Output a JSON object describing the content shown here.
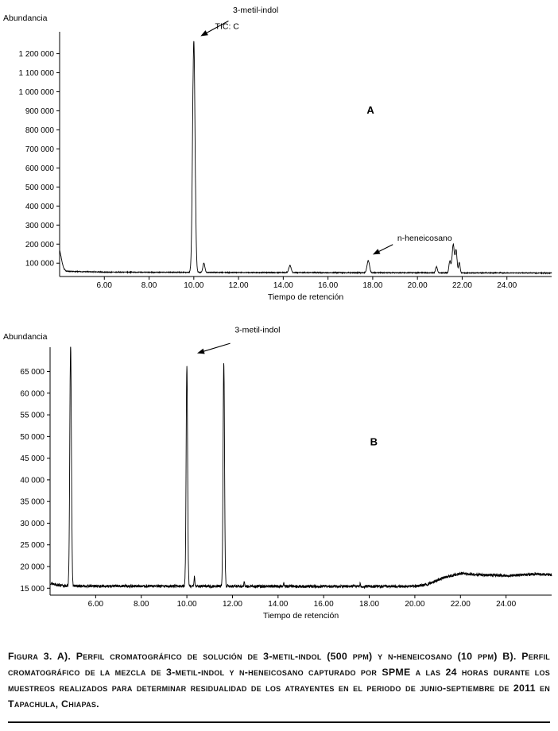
{
  "page": {
    "caption": "Figura 3. A). Perfil cromatográfico de solución de 3-metil-indol (500 ppm) y n-heneicosano (10 ppm) B). Perfil cromatográfico de la mezcla de 3-metil-indol y n-heneicosano capturado por SPME a las 24 horas durante los muestreos realizados para determinar residualidad de los atrayentes en el periodo de junio-septiembre de 2011 en Tapachula, Chiapas."
  },
  "chart_data": [
    {
      "id": "A",
      "type": "line",
      "panel_label": "A",
      "ylabel": "Abundancia",
      "xlabel": "Tiempo de retención",
      "xlim": [
        4.0,
        26.0
      ],
      "ylim": [
        30000,
        1315000
      ],
      "grid": false,
      "xticks": [
        6,
        8,
        10,
        12,
        14,
        16,
        18,
        20,
        22,
        24
      ],
      "xtick_labels": [
        "6.00",
        "8.00",
        "10.00",
        "12.00",
        "14.00",
        "16.00",
        "18.00",
        "20.00",
        "22.00",
        "24.00"
      ],
      "yticks": [
        100000,
        200000,
        300000,
        400000,
        500000,
        600000,
        700000,
        800000,
        900000,
        1000000,
        1100000,
        1200000
      ],
      "ytick_labels": [
        "100 000",
        "200 000",
        "300 000",
        "400 000",
        "500 000",
        "600 000",
        "700 000",
        "800 000",
        "900 000",
        "1 000 000",
        "1 100 000",
        "1 200 000"
      ],
      "baseline_drift": [
        [
          4.0,
          58000
        ],
        [
          6.0,
          53000
        ],
        [
          12.0,
          51000
        ],
        [
          20.0,
          49500
        ],
        [
          26.0,
          48500
        ]
      ],
      "noise_amplitude": 2000,
      "peaks": [
        {
          "x": 3.95,
          "amp": 120000,
          "w": 0.12,
          "label": "solvent front"
        },
        {
          "x": 10.0,
          "amp": 1215000,
          "w": 0.055,
          "label": "3-metil-indol"
        },
        {
          "x": 10.45,
          "amp": 48000,
          "w": 0.045
        },
        {
          "x": 14.3,
          "amp": 38000,
          "w": 0.05
        },
        {
          "x": 17.8,
          "amp": 64000,
          "w": 0.055,
          "label": "n-heneicosano"
        },
        {
          "x": 20.85,
          "amp": 32000,
          "w": 0.04
        },
        {
          "x": 21.45,
          "amp": 62000,
          "w": 0.04
        },
        {
          "x": 21.6,
          "amp": 150000,
          "w": 0.05
        },
        {
          "x": 21.73,
          "amp": 118000,
          "w": 0.04
        },
        {
          "x": 21.87,
          "amp": 55000,
          "w": 0.035
        }
      ],
      "annotations": [
        {
          "name": "3-metil-indol",
          "text": "3-metil-indol",
          "text_at": [
            11.75,
            1415000
          ],
          "anchor": "start",
          "arrow_from": [
            11.55,
            1372000
          ],
          "arrow_to": [
            10.3,
            1292000
          ]
        },
        {
          "name": "tic-c",
          "text": "TIC: C",
          "text_at": [
            10.95,
            1330000
          ],
          "anchor": "start"
        },
        {
          "name": "n-heneicosano",
          "text": "n-heneicosano",
          "text_at": [
            19.1,
            218000
          ],
          "anchor": "start",
          "arrow_from": [
            18.9,
            198000
          ],
          "arrow_to": [
            18.0,
            145000
          ]
        },
        {
          "name": "panel-label-a",
          "text": "A",
          "text_at": [
            17.9,
            885000
          ],
          "anchor": "middle",
          "panel": true
        }
      ],
      "seed": 7
    },
    {
      "id": "B",
      "type": "line",
      "panel_label": "B",
      "ylabel": "Abundancia",
      "xlabel": "Tiempo de retención",
      "xlim": [
        4.0,
        26.0
      ],
      "ylim": [
        13400,
        70600
      ],
      "grid": false,
      "xticks": [
        6,
        8,
        10,
        12,
        14,
        16,
        18,
        20,
        22,
        24
      ],
      "xtick_labels": [
        "6.00",
        "8.00",
        "10.00",
        "12.00",
        "14.00",
        "16.00",
        "18.00",
        "20.00",
        "22.00",
        "24.00"
      ],
      "yticks": [
        15000,
        20000,
        25000,
        30000,
        35000,
        40000,
        45000,
        50000,
        55000,
        60000,
        65000
      ],
      "ytick_labels": [
        "15 000",
        "20 000",
        "25 000",
        "30 000",
        "35 000",
        "40 000",
        "45 000",
        "50 000",
        "55 000",
        "60 000",
        "65 000"
      ],
      "baseline_drift": [
        [
          4.0,
          16200
        ],
        [
          4.6,
          15500
        ],
        [
          19.8,
          15400
        ],
        [
          20.5,
          15800
        ],
        [
          21.3,
          17500
        ],
        [
          22.0,
          18400
        ],
        [
          22.8,
          18100
        ],
        [
          24.2,
          17900
        ],
        [
          25.2,
          18250
        ],
        [
          26.0,
          18100
        ]
      ],
      "noise_amplitude": 320,
      "peaks": [
        {
          "x": 4.9,
          "amp": 56000,
          "w": 0.035
        },
        {
          "x": 10.0,
          "amp": 50600,
          "w": 0.032,
          "label": "3-metil-indol"
        },
        {
          "x": 10.33,
          "amp": 2100,
          "w": 0.02
        },
        {
          "x": 11.62,
          "amp": 51600,
          "w": 0.032
        },
        {
          "x": 12.52,
          "amp": 1100,
          "w": 0.018
        },
        {
          "x": 14.25,
          "amp": 800,
          "w": 0.018
        },
        {
          "x": 17.6,
          "amp": 600,
          "w": 0.018
        }
      ],
      "annotations": [
        {
          "name": "3-metil-indol",
          "text": "3-metil-indol",
          "text_at": [
            12.1,
            74000
          ],
          "anchor": "start",
          "arrow_from": [
            11.9,
            71500
          ],
          "arrow_to": [
            10.45,
            69200
          ]
        },
        {
          "name": "panel-label-b",
          "text": "B",
          "text_at": [
            18.2,
            48000
          ],
          "anchor": "middle",
          "panel": true
        }
      ],
      "seed": 13
    }
  ]
}
